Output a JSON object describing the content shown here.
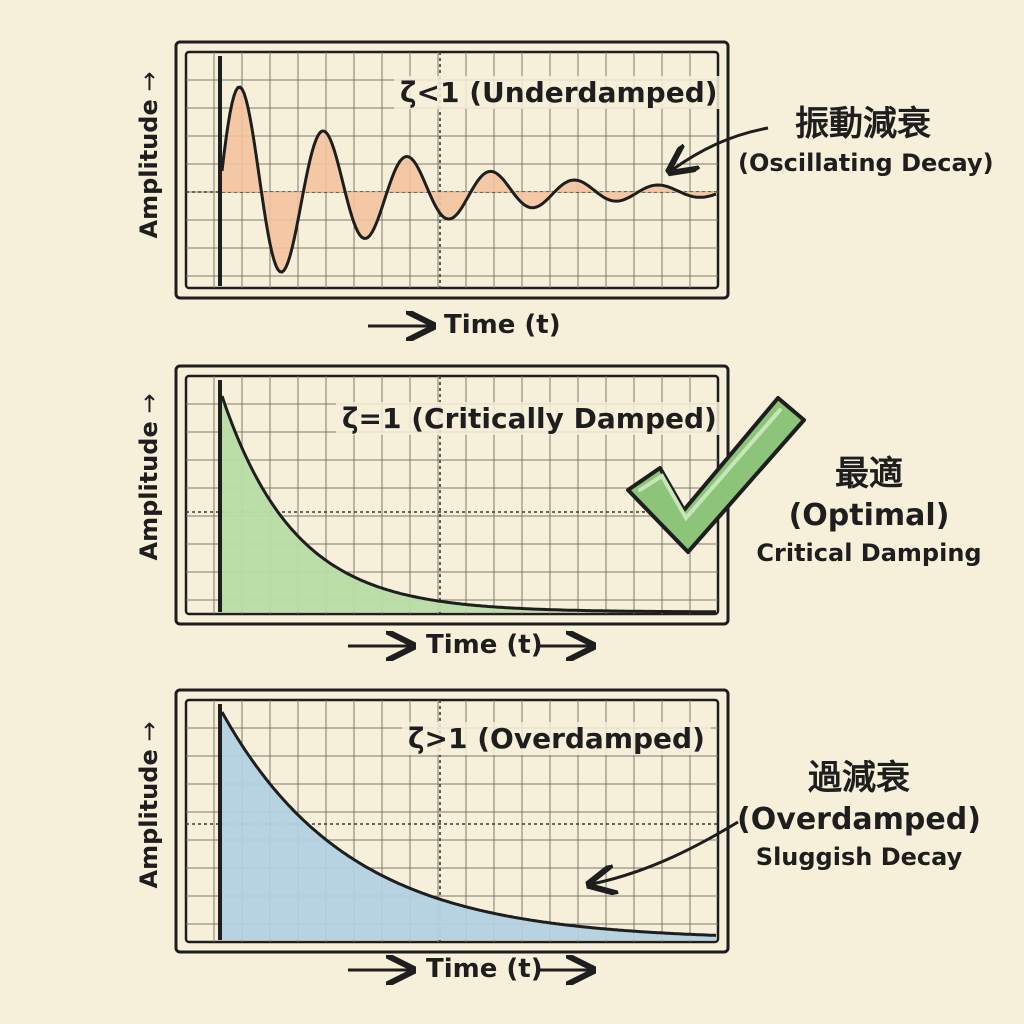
{
  "panels": [
    {
      "key": "underdamped",
      "title": "ζ<1 (Underdamped)",
      "y_axis_label": "Amplitude",
      "x_axis_label": "Time (t)",
      "fill_color": "#f5c39f",
      "side_jp": "振動減衰",
      "side_en": "(Oscillating Decay)",
      "side_sub": ""
    },
    {
      "key": "critical",
      "title": "ζ=1 (Critically Damped)",
      "y_axis_label": "Amplitude",
      "x_axis_label": "Time (t)",
      "fill_color": "#b7dca7",
      "side_jp": "最適",
      "side_en": "(Optimal)",
      "side_sub": "Critical Damping"
    },
    {
      "key": "overdamped",
      "title": "ζ>1 (Overdamped)",
      "y_axis_label": "Amplitude",
      "x_axis_label": "Time (t)",
      "fill_color": "#b3d0e2",
      "side_jp": "過減衰",
      "side_en": "(Overdamped)",
      "side_sub": "Sluggish Decay"
    }
  ],
  "colors": {
    "background": "#f6efd9",
    "ink": "#1e1e1e",
    "grid": "#7d7a6c",
    "checkmark": "#8cc47a"
  },
  "icons": {
    "checkmark": "checkmark-icon",
    "arrow": "arrow-icon"
  }
}
